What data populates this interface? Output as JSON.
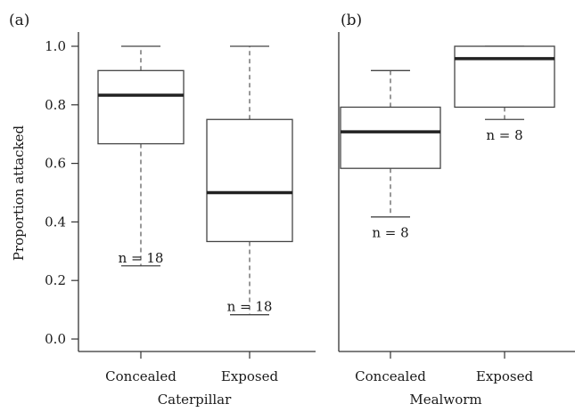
{
  "chart_data": [
    {
      "type": "box",
      "panel_label": "(a)",
      "xlabel": "Caterpillar",
      "ylabel": "Proportion attacked",
      "ylim": [
        0.0,
        1.0
      ],
      "yticks": [
        "0.0",
        "0.2",
        "0.4",
        "0.6",
        "0.8",
        "1.0"
      ],
      "categories": [
        "Concealed",
        "Exposed"
      ],
      "boxes": [
        {
          "category": "Concealed",
          "min": 0.25,
          "q1": 0.667,
          "median": 0.833,
          "q3": 0.917,
          "max": 1.0,
          "n_label": "n = 18"
        },
        {
          "category": "Exposed",
          "min": 0.083,
          "q1": 0.333,
          "median": 0.5,
          "q3": 0.75,
          "max": 1.0,
          "n_label": "n = 18"
        }
      ]
    },
    {
      "type": "box",
      "panel_label": "(b)",
      "xlabel": "Mealworm",
      "ylabel": "",
      "ylim": [
        0.0,
        1.0
      ],
      "yticks": [],
      "categories": [
        "Concealed",
        "Exposed"
      ],
      "boxes": [
        {
          "category": "Concealed",
          "min": 0.417,
          "q1": 0.583,
          "median": 0.708,
          "q3": 0.792,
          "max": 0.917,
          "n_label": "n = 8"
        },
        {
          "category": "Exposed",
          "min": 0.75,
          "q1": 0.792,
          "median": 0.958,
          "q3": 1.0,
          "max": 1.0,
          "n_label": "n = 8"
        }
      ]
    }
  ]
}
